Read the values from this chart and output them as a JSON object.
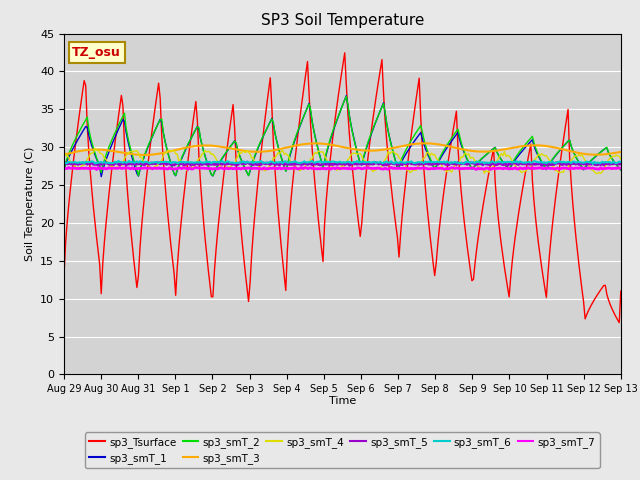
{
  "title": "SP3 Soil Temperature",
  "ylabel": "Soil Temperature (C)",
  "xlabel": "Time",
  "annotation": "TZ_osu",
  "ylim": [
    0,
    45
  ],
  "background_color": "#e8e8e8",
  "plot_bg_color": "#d3d3d3",
  "series_colors": {
    "sp3_Tsurface": "#ff0000",
    "sp3_smT_1": "#0000cc",
    "sp3_smT_2": "#00dd00",
    "sp3_smT_3": "#ffaa00",
    "sp3_smT_4": "#dddd00",
    "sp3_smT_5": "#9900cc",
    "sp3_smT_6": "#00cccc",
    "sp3_smT_7": "#ff00ff"
  },
  "tick_labels": [
    "Aug 29",
    "Aug 30",
    "Aug 31",
    "Sep 1",
    "Sep 2",
    "Sep 3",
    "Sep 4",
    "Sep 5",
    "Sep 6",
    "Sep 7",
    "Sep 8",
    "Sep 9",
    "Sep 10",
    "Sep 11",
    "Sep 12",
    "Sep 13"
  ],
  "yticks": [
    0,
    5,
    10,
    15,
    20,
    25,
    30,
    35,
    40,
    45
  ]
}
